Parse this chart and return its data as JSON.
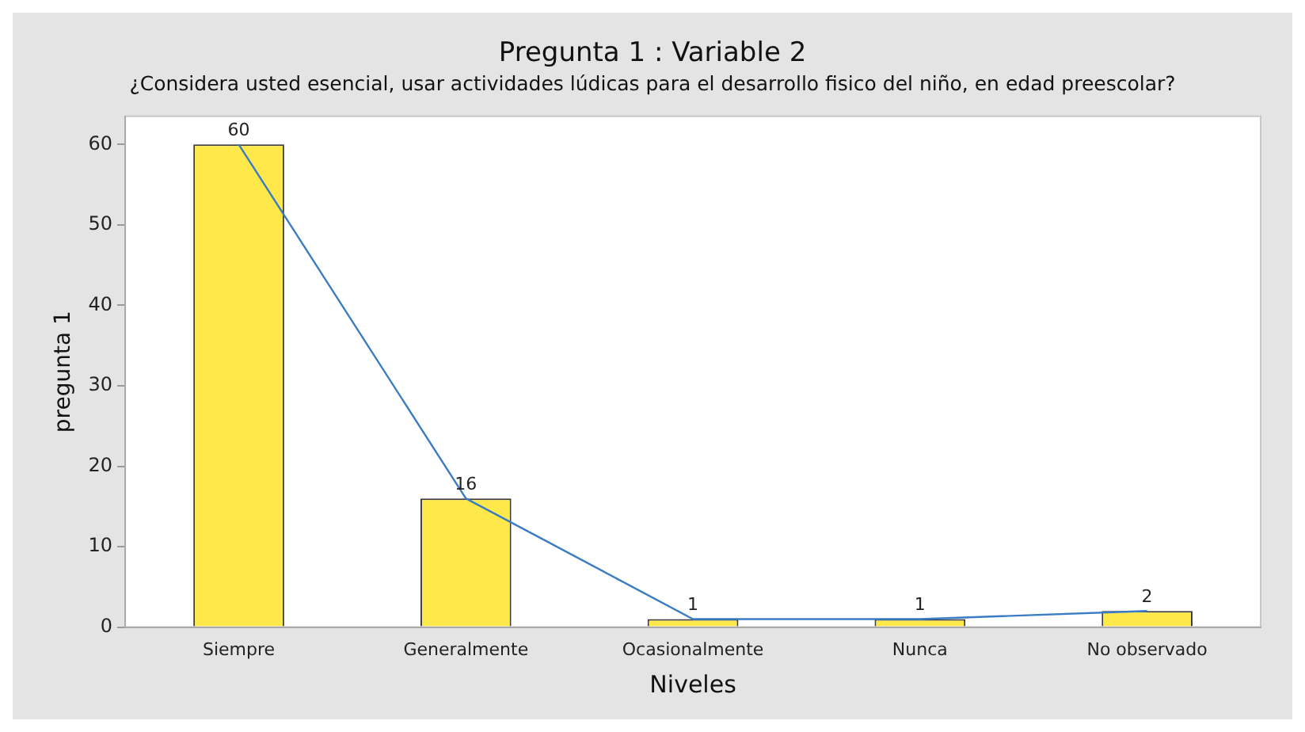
{
  "chart_data": {
    "type": "bar",
    "title": "Pregunta 1 : Variable 2",
    "subtitle": "¿Considera usted esencial, usar actividades lúdicas para el desarrollo fisico del niño, en edad preescolar?",
    "xlabel": "Niveles",
    "ylabel": "pregunta 1",
    "categories": [
      "Siempre",
      "Generalmente",
      "Ocasionalmente",
      "Nunca",
      "No observado"
    ],
    "series": [
      {
        "color": "#ffe94a",
        "values": [
          60,
          16,
          1,
          1,
          2
        ],
        "value_labels": [
          "60",
          "16",
          "1",
          "1",
          "2"
        ]
      },
      {
        "type": "line",
        "color": "#3a7cc4",
        "values": [
          60,
          16,
          1,
          1,
          2
        ]
      }
    ],
    "ylim": [
      0,
      63.5
    ],
    "yticks": [
      0,
      10,
      20,
      30,
      40,
      50,
      60
    ],
    "grid": false,
    "legend": false,
    "marker": "none"
  }
}
